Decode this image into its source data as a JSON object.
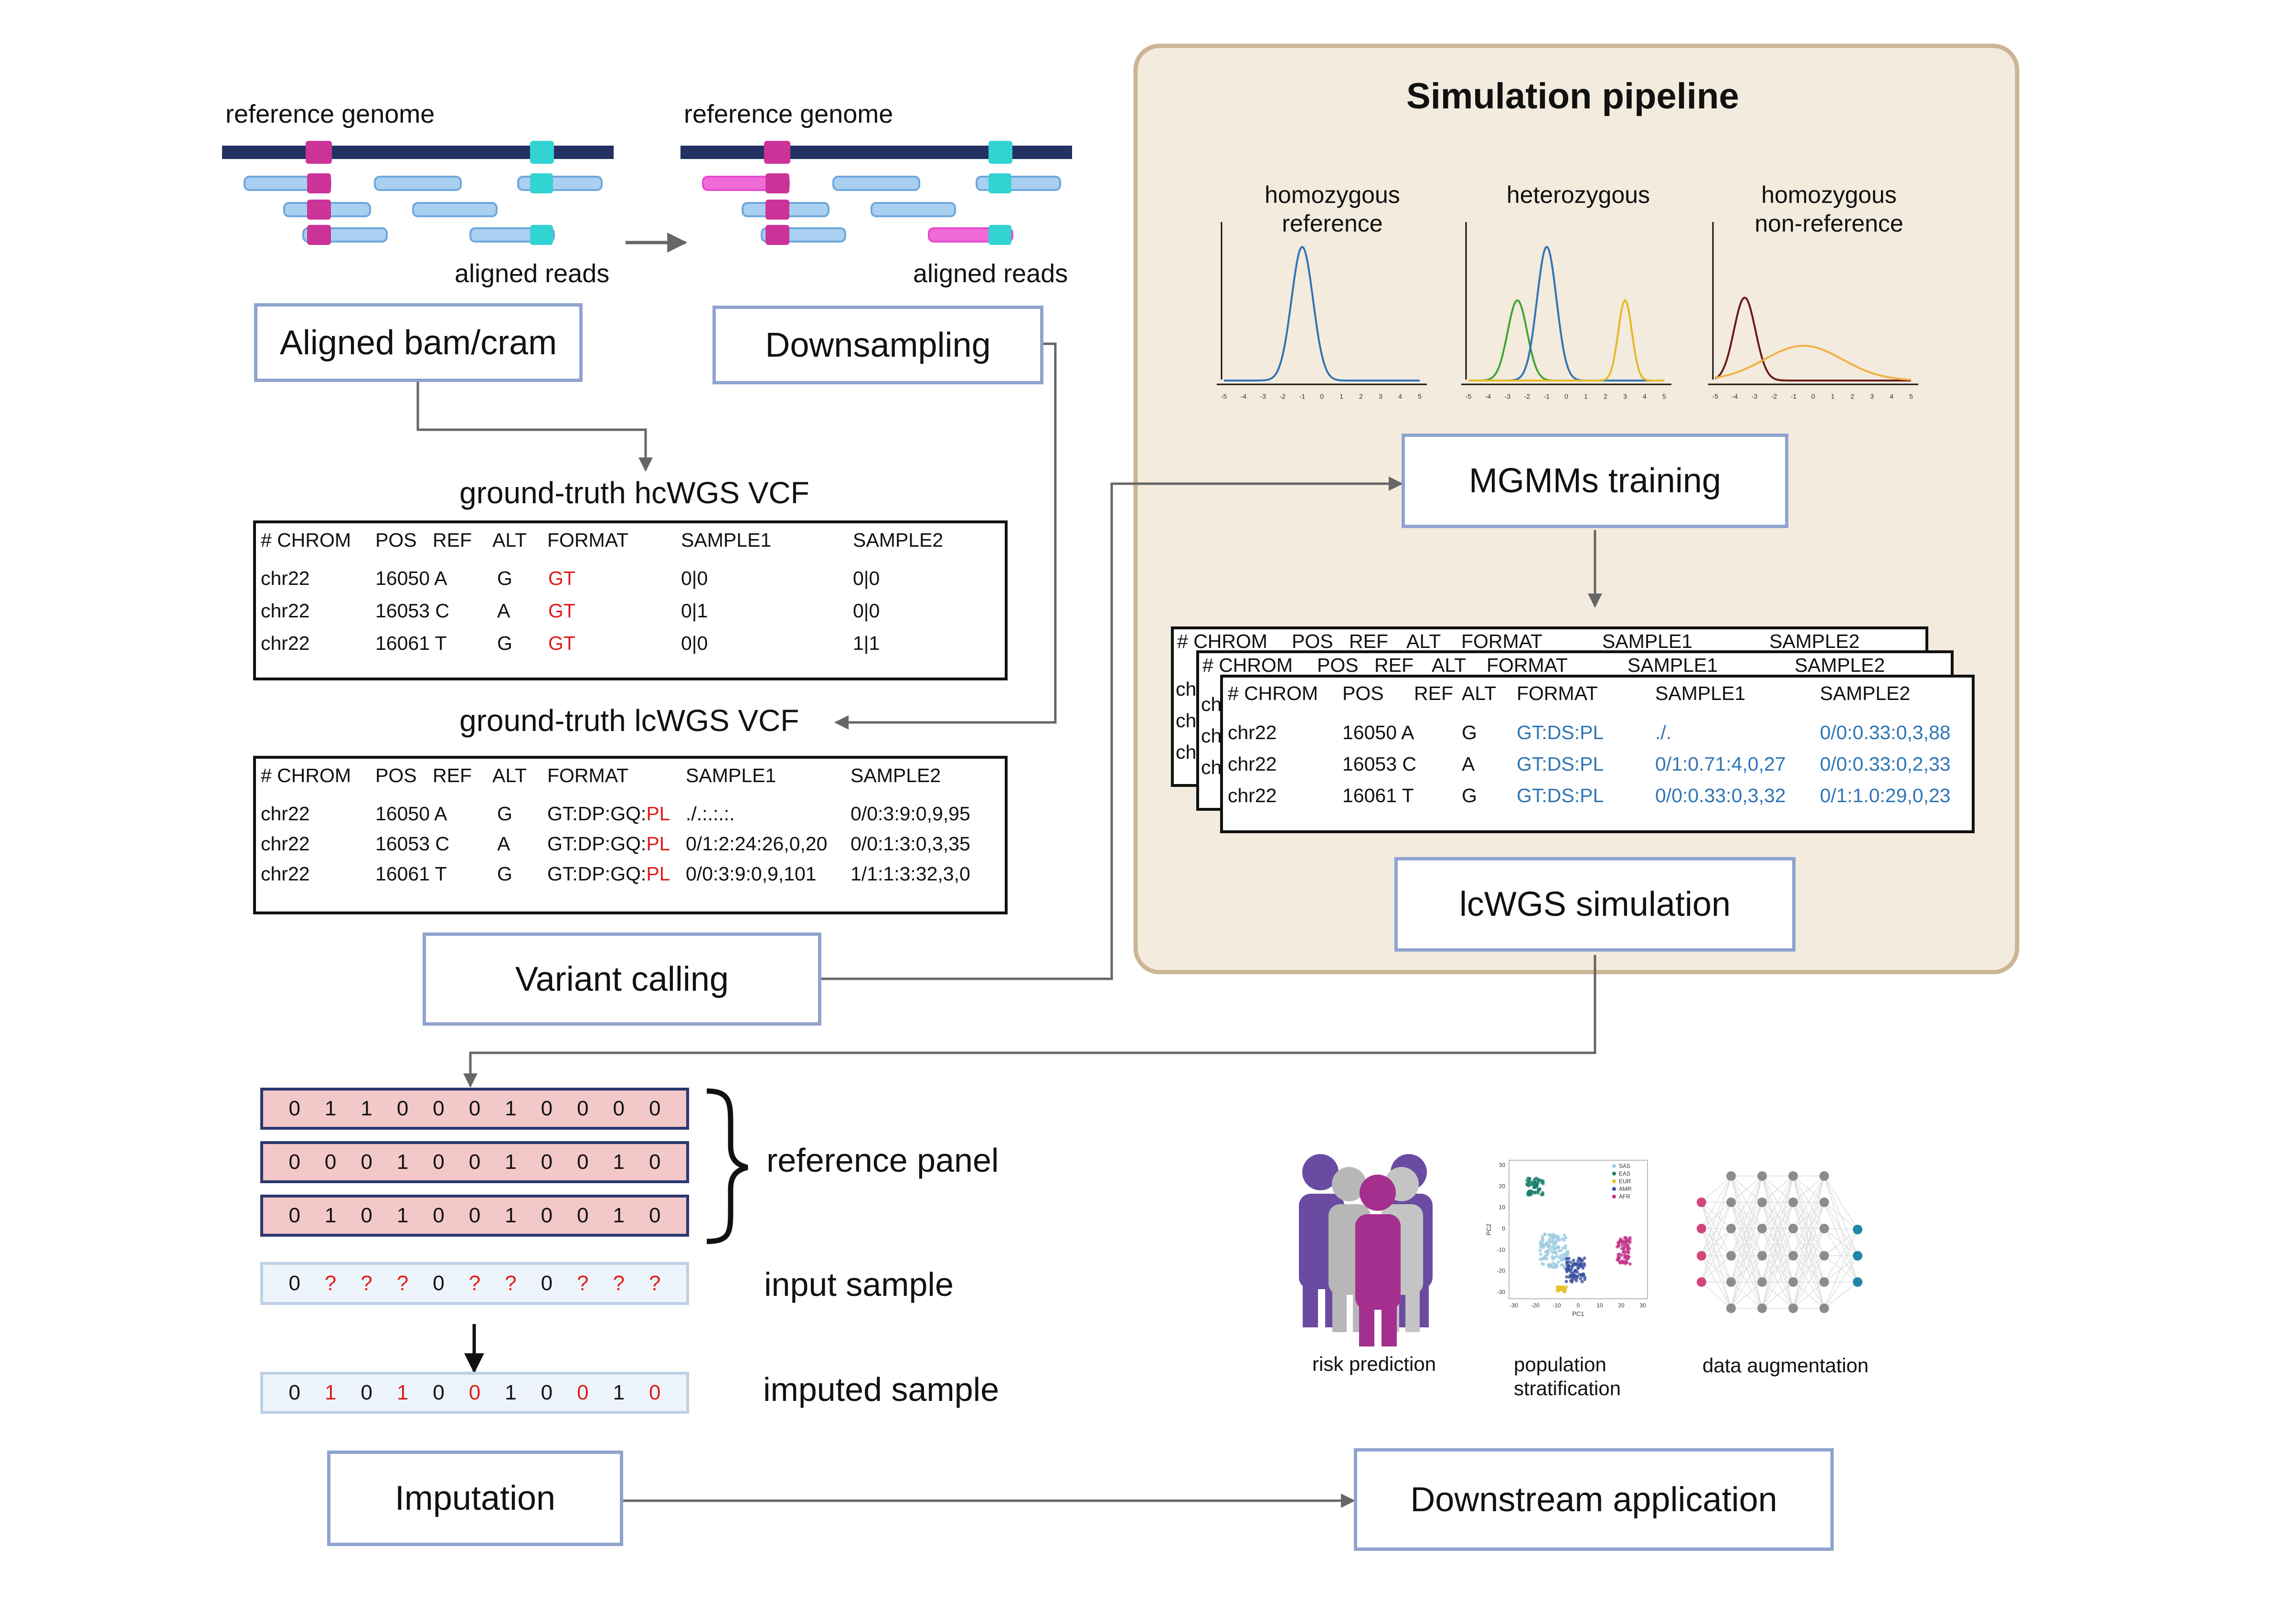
{
  "genome_panels": [
    {
      "reference_label": "reference genome",
      "reads_label": "aligned reads"
    },
    {
      "reference_label": "reference genome",
      "reads_label": "aligned reads"
    }
  ],
  "boxes": {
    "aligned": "Aligned bam/cram",
    "downsampling": "Downsampling",
    "variant_calling": "Variant calling",
    "mgmm": "MGMMs training",
    "lcwgs_sim": "lcWGS simulation",
    "imputation": "Imputation",
    "downstream": "Downstream application"
  },
  "hc_vcf": {
    "title": "ground-truth hcWGS VCF",
    "headers": [
      "# CHROM",
      "POS",
      "REF",
      "ALT",
      "FORMAT",
      "SAMPLE1",
      "SAMPLE2"
    ],
    "rows": [
      [
        "chr22",
        "16050",
        "A",
        "G",
        "GT",
        "0|0",
        "0|0"
      ],
      [
        "chr22",
        "16053",
        "C",
        "A",
        "GT",
        "0|1",
        "0|0"
      ],
      [
        "chr22",
        "16061",
        "T",
        "G",
        "GT",
        "0|0",
        "1|1"
      ]
    ]
  },
  "lc_vcf": {
    "title": "ground-truth lcWGS VCF",
    "headers": [
      "# CHROM",
      "POS",
      "REF",
      "ALT",
      "FORMAT",
      "SAMPLE1",
      "SAMPLE2"
    ],
    "format_prefix": "GT:DP:GQ:",
    "format_suffix": "PL",
    "rows": [
      [
        "chr22",
        "16050",
        "A",
        "G",
        "./.:.:.:.",
        "0/0:3:9:0,9,95"
      ],
      [
        "chr22",
        "16053",
        "C",
        "A",
        "0/1:2:24:26,0,20",
        "0/0:1:3:0,3,35"
      ],
      [
        "chr22",
        "16061",
        "T",
        "G",
        "0/0:3:9:0,9,101",
        "1/1:1:3:32,3,0"
      ]
    ]
  },
  "simulation": {
    "title": "Simulation pipeline",
    "curve_labels": [
      {
        "line1": "homozygous",
        "line2": "reference"
      },
      {
        "line1": "heterozygous",
        "line2": ""
      },
      {
        "line1": "homozygous",
        "line2": "non-reference"
      }
    ],
    "axis_ticks": [
      "-5",
      "-4",
      "-3",
      "-2",
      "-1",
      "0",
      "1",
      "2",
      "3",
      "4",
      "5"
    ],
    "colors": {
      "blue": "#2f75b5",
      "green": "#3fa535",
      "yellow": "#e6b82a",
      "darkred": "#6b1a1a",
      "orange": "#f0b044"
    },
    "sim_vcf": {
      "headers": [
        "# CHROM",
        "POS",
        "REF",
        "ALT",
        "FORMAT",
        "SAMPLE1",
        "SAMPLE2"
      ],
      "back_peek": "ch",
      "rows": [
        [
          "chr22",
          "16050",
          "A",
          "G",
          "GT:DS:PL",
          "./.",
          "0/0:0.33:0,3,88"
        ],
        [
          "chr22",
          "16053",
          "C",
          "A",
          "GT:DS:PL",
          "0/1:0.71:4,0,27",
          "0/0:0.33:0,2,33"
        ],
        [
          "chr22",
          "16061",
          "T",
          "G",
          "GT:DS:PL",
          "0/0:0.33:0,3,32",
          "0/1:1.0:29,0,23"
        ]
      ]
    }
  },
  "panel": {
    "reference_label": "reference panel",
    "input_label": "input sample",
    "imputed_label": "imputed sample",
    "reference_rows": [
      [
        "0",
        "1",
        "1",
        "0",
        "0",
        "0",
        "1",
        "0",
        "0",
        "0",
        "0"
      ],
      [
        "0",
        "0",
        "0",
        "1",
        "0",
        "0",
        "1",
        "0",
        "0",
        "1",
        "0"
      ],
      [
        "0",
        "1",
        "0",
        "1",
        "0",
        "0",
        "1",
        "0",
        "0",
        "1",
        "0"
      ]
    ],
    "input_row": [
      "0",
      "?",
      "?",
      "?",
      "0",
      "?",
      "?",
      "0",
      "?",
      "?",
      "?"
    ],
    "imputed_row": [
      "0",
      "1",
      "0",
      "1",
      "0",
      "0",
      "1",
      "0",
      "0",
      "1",
      "0"
    ],
    "imputed_red_mask": [
      false,
      true,
      false,
      true,
      false,
      true,
      false,
      false,
      true,
      false,
      true
    ]
  },
  "applications": {
    "items": [
      "risk prediction",
      "population stratification",
      "data augmentation"
    ],
    "pca": {
      "legend": [
        "SAS",
        "EAS",
        "EUR",
        "AMR",
        "AFR"
      ],
      "legend_colors": [
        "#9ecae1",
        "#1b7f6b",
        "#e6c229",
        "#3a4fa0",
        "#c2338a"
      ],
      "xlabel": "PC1",
      "ylabel": "PC2",
      "x_ticks": [
        "-30",
        "-20",
        "-10",
        "0",
        "10",
        "20",
        "30"
      ],
      "y_ticks": [
        "30",
        "20",
        "10",
        "0",
        "-10",
        "-20",
        "-30"
      ]
    },
    "network": {
      "input_color": "#d1467c",
      "hidden_color": "#8c8c8c",
      "output_color": "#1f86a8"
    }
  }
}
